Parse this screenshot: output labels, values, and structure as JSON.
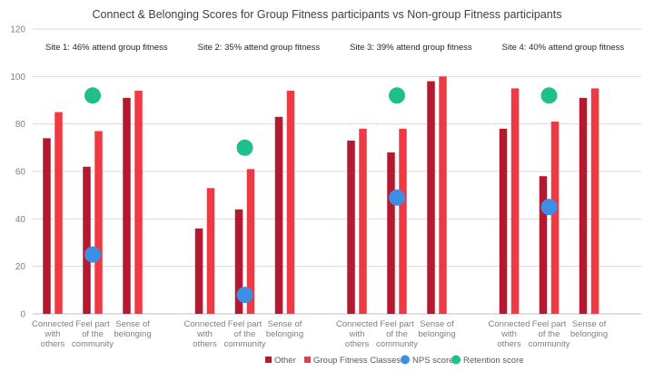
{
  "chart_data": {
    "type": "bar",
    "title": "Connect & Belonging Scores for Group Fitness participants vs Non-group Fitness participants",
    "ylim": [
      0,
      120
    ],
    "yticks": [
      0,
      20,
      40,
      60,
      80,
      100,
      120
    ],
    "grid": true,
    "legend_position": "bottom",
    "categories": [
      "Connected with others",
      "Feel part of the community",
      "Sense of belonging"
    ],
    "category_lines": [
      [
        "Connected",
        "with",
        "others"
      ],
      [
        "Feel part",
        "of the",
        "community"
      ],
      [
        "Sense of",
        "belonging"
      ]
    ],
    "legend": {
      "other": "Other",
      "group": "Group Fitness Classes",
      "nps": "NPS score",
      "retention": "Retention score"
    },
    "colors": {
      "other": "#b5192f",
      "group": "#ee3a43",
      "nps": "#3d8fe6",
      "retention": "#1dc08a",
      "grid": "#d9d9d9",
      "axis": "#bfbfbf"
    },
    "groups": [
      {
        "site": "Site 1: 46% attend group fitness",
        "other": [
          74,
          62,
          91
        ],
        "group": [
          85,
          77,
          94
        ],
        "nps": 25,
        "retention": 92
      },
      {
        "site": "Site 2: 35% attend group fitness",
        "other": [
          36,
          44,
          83
        ],
        "group": [
          53,
          61,
          94
        ],
        "nps": 8,
        "retention": 70
      },
      {
        "site": "Site 3: 39% attend group fitness",
        "other": [
          73,
          68,
          98
        ],
        "group": [
          78,
          78,
          100
        ],
        "nps": 49,
        "retention": 92
      },
      {
        "site": "Site 4: 40% attend group fitness",
        "other": [
          78,
          58,
          91
        ],
        "group": [
          95,
          81,
          95
        ],
        "nps": 45,
        "retention": 92
      }
    ]
  }
}
